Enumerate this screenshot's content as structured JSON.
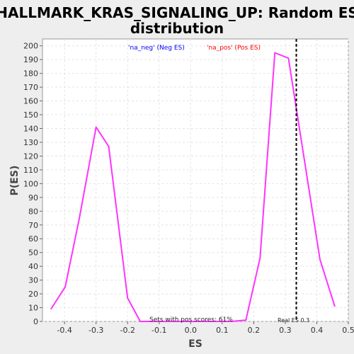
{
  "chart_data": {
    "type": "line",
    "title_line1": "HALLMARK_KRAS_SIGNALING_UP: Random ES",
    "title_line2": "distribution",
    "xlabel": "ES",
    "ylabel": "P(ES)",
    "xlim": [
      -0.47,
      0.5
    ],
    "ylim": [
      0,
      205
    ],
    "x_ticks": [
      "-0.4",
      "-0.3",
      "-0.2",
      "-0.1",
      "0.0",
      "0.1",
      "0.2",
      "0.3",
      "0.4",
      "0.5"
    ],
    "y_ticks": [
      "0",
      "10",
      "20",
      "30",
      "40",
      "50",
      "60",
      "70",
      "80",
      "90",
      "100",
      "110",
      "120",
      "130",
      "140",
      "150",
      "160",
      "170",
      "180",
      "190",
      "200"
    ],
    "grid": true,
    "legend": [
      {
        "label": "'na_neg' (Neg ES)",
        "color": "#0000ff"
      },
      {
        "label": "'na_pos' (Pos ES)",
        "color": "#ff0000"
      }
    ],
    "series": [
      {
        "color": "#ff33ff",
        "points": [
          [
            -0.443,
            9
          ],
          [
            -0.398,
            25
          ],
          [
            -0.353,
            75
          ],
          [
            -0.3,
            141
          ],
          [
            -0.26,
            127
          ],
          [
            -0.2,
            17
          ],
          [
            -0.16,
            0
          ],
          [
            0.13,
            0
          ],
          [
            0.175,
            1
          ],
          [
            0.22,
            46
          ],
          [
            0.267,
            195
          ],
          [
            0.31,
            191
          ],
          [
            0.41,
            45
          ],
          [
            0.457,
            11
          ]
        ]
      }
    ],
    "real_es": {
      "value": 0.335,
      "label": "Real ES 0.3"
    },
    "annotation": "Sets with pos scores: 61%"
  }
}
